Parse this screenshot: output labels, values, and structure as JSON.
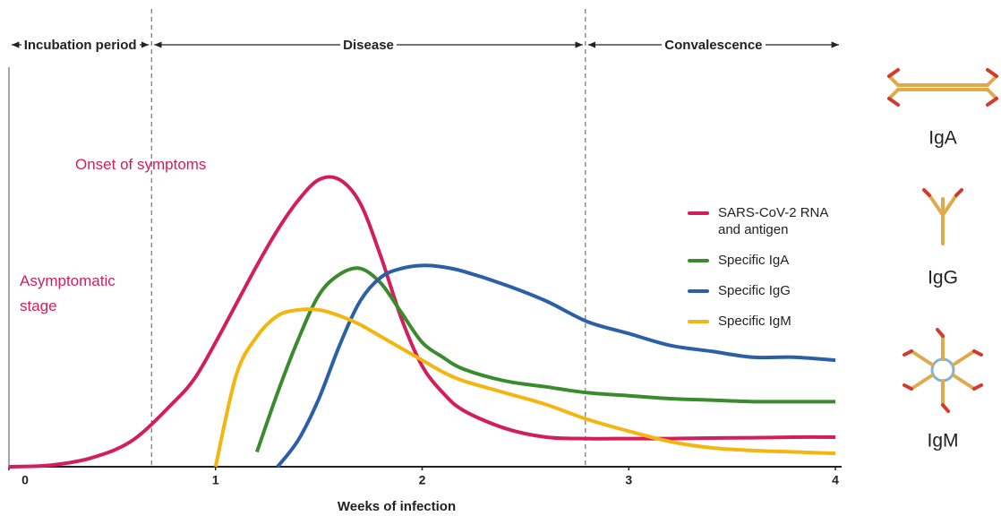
{
  "chart_data": {
    "type": "line",
    "x_label": "Weeks of infection",
    "x": [
      0,
      0.2,
      0.4,
      0.6,
      0.8,
      0.9,
      1.0,
      1.1,
      1.2,
      1.3,
      1.4,
      1.5,
      1.6,
      1.7,
      1.8,
      1.9,
      2.0,
      2.1,
      2.2,
      2.4,
      2.6,
      2.8,
      3.0,
      3.2,
      3.4,
      3.6,
      3.8,
      4.0
    ],
    "xlim": [
      0,
      4.03
    ],
    "xticks": [
      0,
      1,
      2,
      3,
      4
    ],
    "ylim": [
      0,
      135
    ],
    "series": [
      {
        "name": "SARS-CoV-2 RNA and antigen",
        "color": "#d21f5b",
        "values": [
          0,
          0.5,
          3,
          9,
          22,
          30,
          42,
          55,
          68,
          80,
          90,
          97,
          97,
          89,
          71,
          50,
          34,
          25,
          19,
          13,
          10,
          9.5,
          9.5,
          9.5,
          9.7,
          9.8,
          10,
          10
        ]
      },
      {
        "name": "Specific IgA",
        "color": "#3a8a2e",
        "values": [
          null,
          null,
          null,
          null,
          null,
          null,
          null,
          null,
          5,
          25,
          43,
          58,
          65,
          67,
          62,
          52,
          42,
          37,
          33,
          29,
          27,
          25,
          24,
          23,
          22.5,
          22,
          22,
          22
        ]
      },
      {
        "name": "Specific IgG",
        "color": "#2b5fa8",
        "values": [
          null,
          null,
          null,
          null,
          null,
          null,
          null,
          null,
          null,
          0,
          9,
          23,
          41,
          56,
          64,
          67,
          68,
          67.5,
          66,
          61.5,
          56,
          49,
          45,
          41,
          39,
          37,
          37,
          36
        ]
      },
      {
        "name": "Specific IgM",
        "color": "#f5b50f",
        "values": [
          null,
          null,
          null,
          null,
          null,
          null,
          0,
          31,
          44,
          51,
          53,
          53,
          51,
          48,
          44,
          40,
          36,
          32,
          29,
          25,
          21,
          16,
          12,
          8.5,
          6.4,
          5.5,
          5,
          4.5
        ]
      }
    ],
    "phases": [
      "Incubation period",
      "Disease",
      "Convalescence"
    ],
    "phase_boundaries": [
      0.69,
      2.79
    ],
    "annotations": [
      "Onset of symptoms",
      "Asymptomatic stage"
    ],
    "antibodies": [
      "IgA",
      "IgG",
      "IgM"
    ]
  }
}
